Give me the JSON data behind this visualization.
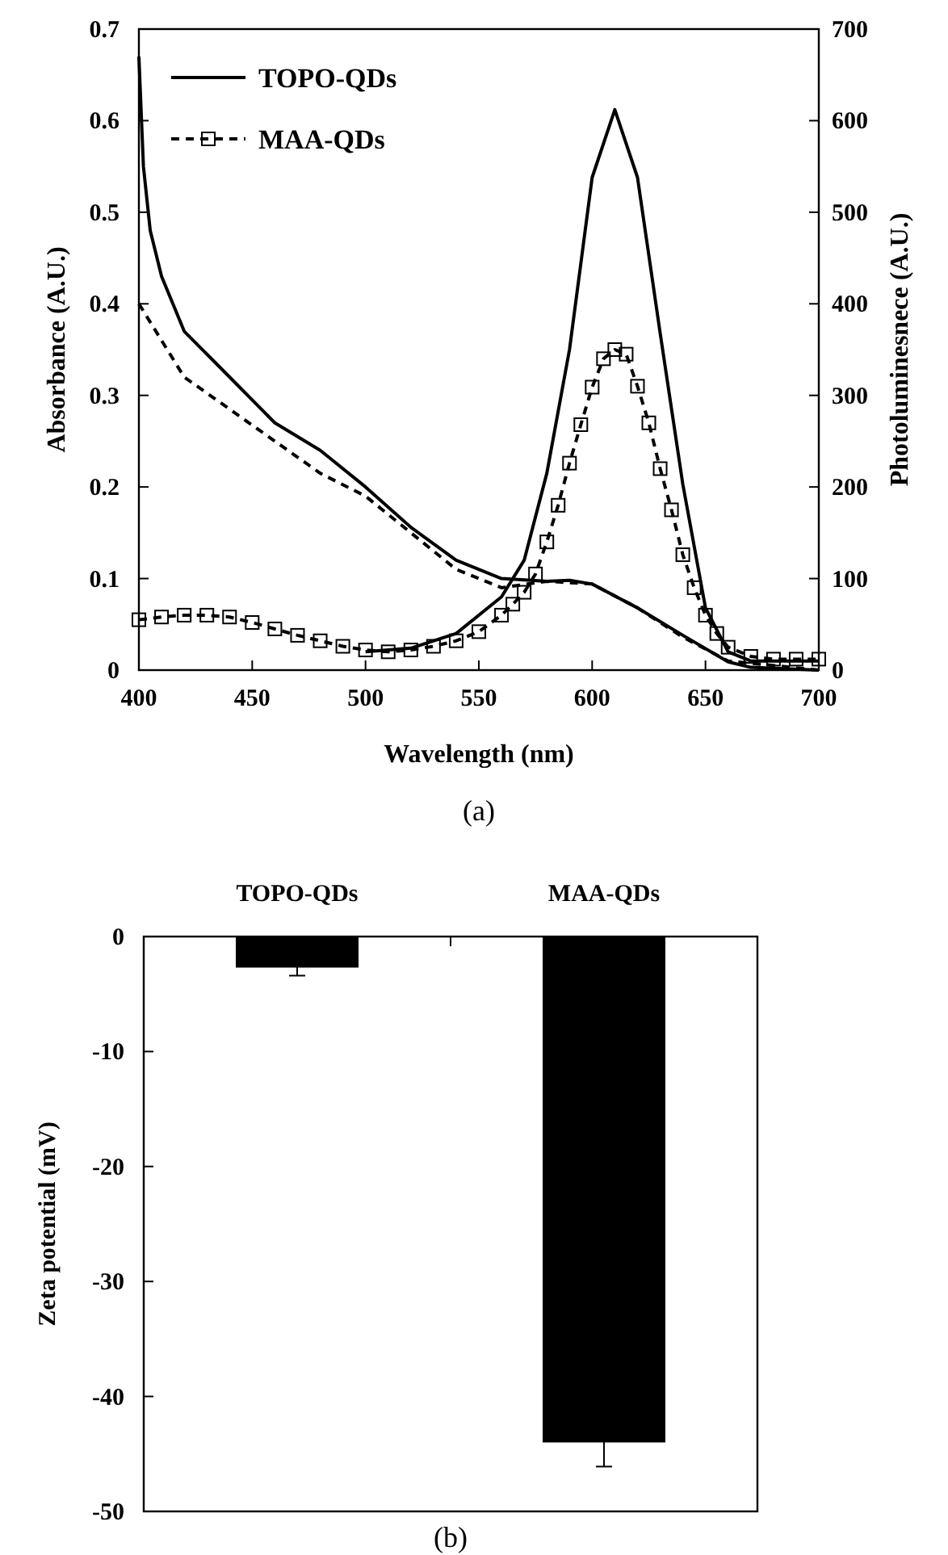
{
  "chart_data": [
    {
      "type": "line",
      "xlabel": "Wavelength (nm)",
      "ylabel": "Absorbance (A.U.)",
      "y2label": "Photoluminesnece (A.U.)",
      "xlim": [
        400,
        700
      ],
      "xticks": [
        400,
        450,
        500,
        550,
        600,
        650,
        700
      ],
      "ylim": [
        0,
        0.7
      ],
      "yticks": [
        0,
        0.1,
        0.2,
        0.3,
        0.4,
        0.5,
        0.6,
        0.7
      ],
      "y2lim": [
        0,
        700
      ],
      "y2ticks": [
        0,
        100,
        200,
        300,
        400,
        500,
        600,
        700
      ],
      "legend": "top left",
      "grid": false,
      "annotations": [
        "(a)"
      ],
      "series": [
        {
          "name": "TOPO-QDs",
          "color": "#000000",
          "line_style": "solid",
          "marker": "none",
          "x": [
            400,
            402,
            405,
            410,
            420,
            440,
            460,
            480,
            500,
            520,
            540,
            560,
            580,
            590,
            600,
            620,
            640,
            660,
            670,
            700
          ],
          "values": [
            0.67,
            0.55,
            0.48,
            0.43,
            0.37,
            0.32,
            0.27,
            0.24,
            0.2,
            0.156,
            0.12,
            0.1,
            0.097,
            0.098,
            0.094,
            0.068,
            0.038,
            0.009,
            0.003,
            0
          ]
        },
        {
          "color": "#000000",
          "line_style": "dashed",
          "marker": "none",
          "x": [
            400,
            410,
            420,
            440,
            460,
            480,
            500,
            520,
            540,
            560,
            580,
            600,
            620,
            640,
            660,
            700
          ],
          "values": [
            0.4,
            0.36,
            0.32,
            0.285,
            0.25,
            0.215,
            0.19,
            0.15,
            0.11,
            0.09,
            0.097,
            0.094,
            0.068,
            0.036,
            0.01,
            0
          ]
        },
        {
          "color": "#000000",
          "line_style": "solid",
          "marker": "none",
          "axis": "y2",
          "x": [
            500,
            520,
            540,
            560,
            570,
            580,
            590,
            600,
            610,
            620,
            630,
            640,
            650,
            660,
            670,
            700
          ],
          "values": [
            20,
            24,
            40,
            80,
            120,
            215,
            350,
            538,
            612,
            538,
            368,
            203,
            68,
            20,
            10,
            10
          ]
        },
        {
          "name": "MAA-QDs",
          "color": "#000000",
          "line_style": "dashed",
          "marker": "square",
          "axis": "y2",
          "x": [
            400,
            410,
            420,
            430,
            440,
            450,
            460,
            470,
            480,
            490,
            500,
            510,
            520,
            530,
            540,
            550,
            560,
            565,
            570,
            575,
            580,
            585,
            590,
            595,
            600,
            605,
            610,
            615,
            620,
            625,
            630,
            635,
            640,
            645,
            650,
            655,
            660,
            670,
            680,
            690,
            700
          ],
          "values": [
            55,
            58,
            60,
            60,
            58,
            52,
            45,
            38,
            32,
            26,
            22,
            20,
            22,
            26,
            32,
            42,
            60,
            72,
            85,
            105,
            140,
            180,
            226,
            268,
            309,
            340,
            350,
            345,
            310,
            270,
            220,
            175,
            126,
            90,
            60,
            40,
            25,
            15,
            12,
            12,
            12
          ]
        }
      ]
    },
    {
      "type": "bar",
      "ylabel": "Zeta potential (mV)",
      "categories": [
        "TOPO-QDs",
        "MAA-QDs"
      ],
      "values": [
        -2.7,
        -44
      ],
      "errors": [
        0.7,
        2.1
      ],
      "color": "#000000",
      "ylim": [
        -50,
        0
      ],
      "yticks": [
        0,
        -10,
        -20,
        -30,
        -40,
        -50
      ],
      "annotations": [
        "(b)"
      ]
    }
  ]
}
